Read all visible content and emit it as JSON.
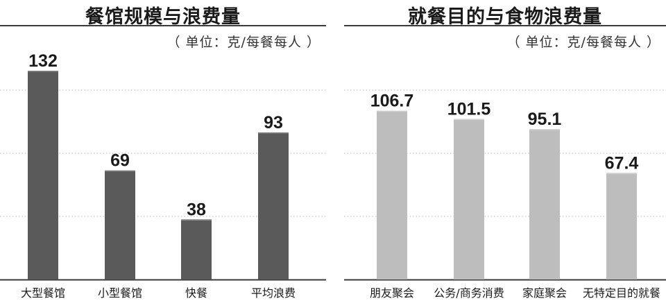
{
  "chart_data": [
    {
      "type": "bar",
      "title": "餐馆规模与浪费量",
      "unit": "（ 单位：克/每餐每人 ）",
      "categories": [
        "大型餐馆",
        "小型餐馆",
        "快餐",
        "平均浪费"
      ],
      "values": [
        132,
        69,
        38,
        93
      ],
      "value_labels": [
        "132",
        "69",
        "38",
        "93"
      ],
      "ylim": [
        0,
        140
      ],
      "grid": true,
      "bar_color": "#5a5a5a"
    },
    {
      "type": "bar",
      "title": "就餐目的与食物浪费量",
      "unit": "（ 单位：克/每餐每人 ）",
      "categories": [
        "朋友聚会",
        "公务/商务消费",
        "家庭聚会",
        "无特定目的就餐"
      ],
      "values": [
        106.7,
        101.5,
        95.1,
        67.4
      ],
      "value_labels": [
        "106.7",
        "101.5",
        "95.1",
        "67.4"
      ],
      "ylim": [
        0,
        140
      ],
      "grid": true,
      "bar_color": "#bdbdbd"
    }
  ]
}
